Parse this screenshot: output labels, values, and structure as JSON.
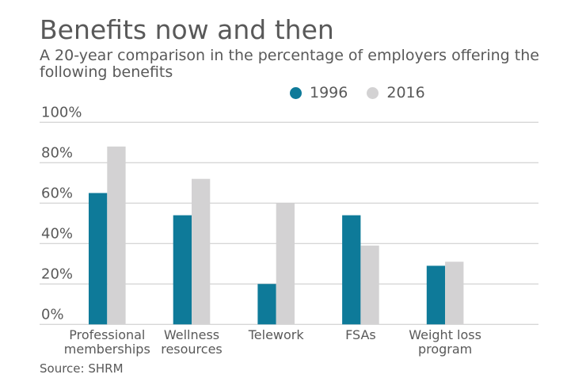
{
  "chart_data": {
    "type": "bar",
    "title": "Benefits now and then",
    "subtitle": "A 20-year comparison in the percentage of employers offering the following benefits",
    "source": "Source: SHRM",
    "categories": [
      [
        "Professional",
        "memberships"
      ],
      [
        "Wellness",
        "resources"
      ],
      [
        "Telework"
      ],
      [
        "FSAs"
      ],
      [
        "Weight loss",
        "program"
      ]
    ],
    "series": [
      {
        "name": "1996",
        "color": "#0e7a99",
        "values": [
          65,
          54,
          20,
          54,
          29
        ]
      },
      {
        "name": "2016",
        "color": "#d3d2d3",
        "values": [
          88,
          72,
          60,
          39,
          31
        ]
      }
    ],
    "yticks": [
      "0%",
      "20%",
      "40%",
      "60%",
      "80%",
      "100%"
    ],
    "ylim": [
      0,
      100
    ],
    "grid": true,
    "legend": "top-center"
  }
}
